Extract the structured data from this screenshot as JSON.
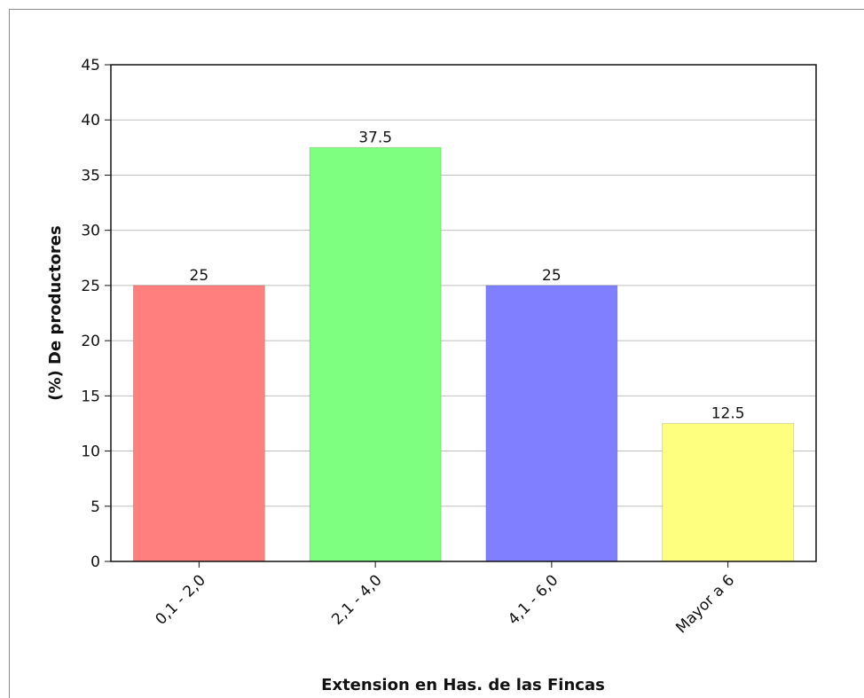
{
  "chart_data": {
    "type": "bar",
    "title": "",
    "xlabel": "Extension en Has. de las Fincas",
    "ylabel": "(%) De productores",
    "categories": [
      "0,1 - 2,0",
      "2,1 - 4,0",
      "4,1 - 6,0",
      "Mayor a 6"
    ],
    "values": [
      25,
      37.5,
      25,
      12.5
    ],
    "data_labels": [
      "25",
      "37.5",
      "25",
      "12.5"
    ],
    "colors": [
      "#ff7f7f",
      "#7fff7f",
      "#7f7fff",
      "#ffff7f"
    ],
    "ylim": [
      0,
      45
    ],
    "yticks": [
      0,
      5,
      10,
      15,
      20,
      25,
      30,
      35,
      40,
      45
    ],
    "grid": true,
    "legend": "none"
  }
}
